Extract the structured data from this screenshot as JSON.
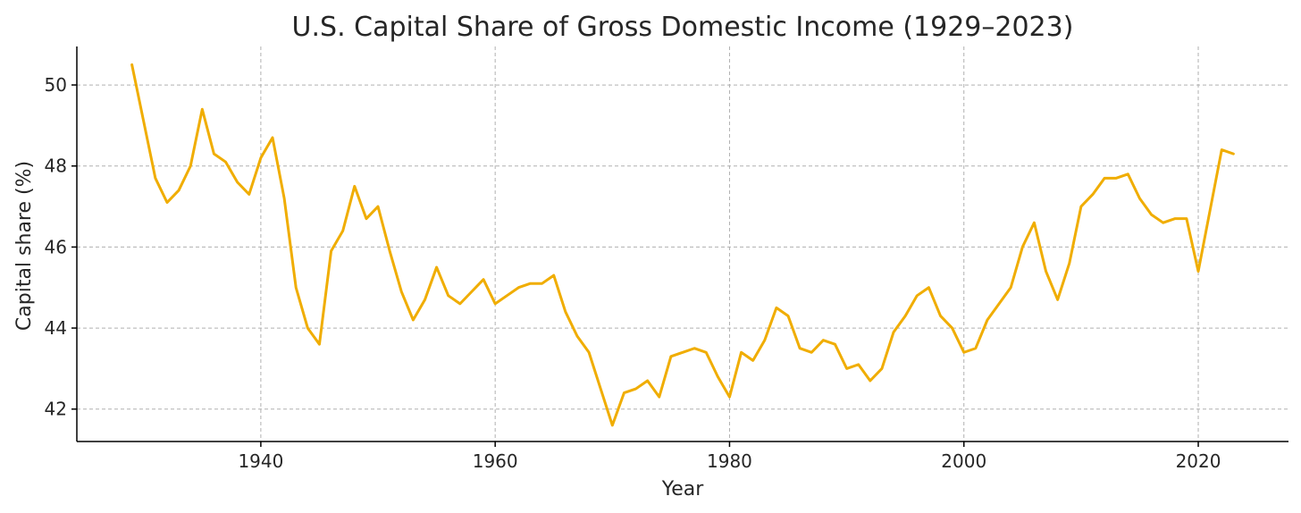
{
  "chart_data": {
    "type": "line",
    "title": "U.S. Capital Share of Gross Domestic Income (1929–2023)",
    "xlabel": "Year",
    "ylabel": "Capital share (%)",
    "xlim": [
      1924.3,
      2027.7
    ],
    "ylim": [
      41.2,
      50.95
    ],
    "xticks": [
      1940,
      1960,
      1980,
      2000,
      2020
    ],
    "yticks": [
      42,
      44,
      46,
      48,
      50
    ],
    "grid": true,
    "legend": "none",
    "color": "#f0ad00",
    "x": [
      1929,
      1930,
      1931,
      1932,
      1933,
      1934,
      1935,
      1936,
      1937,
      1938,
      1939,
      1940,
      1941,
      1942,
      1943,
      1944,
      1945,
      1946,
      1947,
      1948,
      1949,
      1950,
      1951,
      1952,
      1953,
      1954,
      1955,
      1956,
      1957,
      1958,
      1959,
      1960,
      1961,
      1962,
      1963,
      1964,
      1965,
      1966,
      1967,
      1968,
      1969,
      1970,
      1971,
      1972,
      1973,
      1974,
      1975,
      1976,
      1977,
      1978,
      1979,
      1980,
      1981,
      1982,
      1983,
      1984,
      1985,
      1986,
      1987,
      1988,
      1989,
      1990,
      1991,
      1992,
      1993,
      1994,
      1995,
      1996,
      1997,
      1998,
      1999,
      2000,
      2001,
      2002,
      2003,
      2004,
      2005,
      2006,
      2007,
      2008,
      2009,
      2010,
      2011,
      2012,
      2013,
      2014,
      2015,
      2016,
      2017,
      2018,
      2019,
      2020,
      2021,
      2022,
      2023
    ],
    "series": [
      {
        "values": [
          50.5,
          49.1,
          47.7,
          47.1,
          47.4,
          48.0,
          49.4,
          48.3,
          48.1,
          47.6,
          47.3,
          48.2,
          48.7,
          47.2,
          45.0,
          44.0,
          43.6,
          45.9,
          46.4,
          47.5,
          46.7,
          47.0,
          45.9,
          44.9,
          44.2,
          44.7,
          45.5,
          44.8,
          44.6,
          44.9,
          45.2,
          44.6,
          44.8,
          45.0,
          45.1,
          45.1,
          45.3,
          44.4,
          43.8,
          43.4,
          42.5,
          41.6,
          42.4,
          42.5,
          42.7,
          42.3,
          43.3,
          43.4,
          43.5,
          43.4,
          42.8,
          42.3,
          43.4,
          43.2,
          43.7,
          44.5,
          44.3,
          43.5,
          43.4,
          43.7,
          43.6,
          43.0,
          43.1,
          42.7,
          43.0,
          43.9,
          44.3,
          44.8,
          45.0,
          44.3,
          44.0,
          43.4,
          43.5,
          44.2,
          44.6,
          45.0,
          46.0,
          46.6,
          45.4,
          44.7,
          45.6,
          47.0,
          47.3,
          47.7,
          47.7,
          47.8,
          47.2,
          46.8,
          46.6,
          46.7,
          46.7,
          45.4,
          46.9,
          48.4,
          48.3
        ]
      }
    ]
  }
}
